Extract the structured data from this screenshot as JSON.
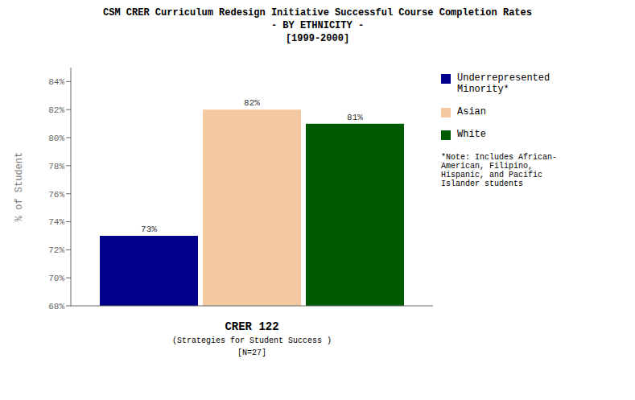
{
  "chart_data": {
    "type": "bar",
    "title": "CSM CRER Curriculum Redesign Initiative Successful Course Completion Rates\n- BY ETHNICITY -\n[1999-2000]",
    "x_label": "CRER 122\n(Strategies for Student Success )\n[N=27]",
    "y_label": "% of Student",
    "categories": [
      null
    ],
    "series": [
      {
        "name": "Underrepresented\nMinority*",
        "color": "#00008B",
        "values": [
          73
        ],
        "value_labels": [
          "73%"
        ]
      },
      {
        "name": "Asian",
        "color": "#F4C9A0",
        "values": [
          82
        ],
        "value_labels": [
          "82%"
        ]
      },
      {
        "name": "White",
        "color": "#005B00",
        "values": [
          81
        ],
        "value_labels": [
          "81%"
        ]
      }
    ],
    "ylim": [
      68,
      85
    ],
    "yticks": [
      {
        "value": 68,
        "label": "68%"
      },
      {
        "value": 70,
        "label": "70%"
      },
      {
        "value": 72,
        "label": "72%"
      },
      {
        "value": 74,
        "label": "74%"
      },
      {
        "value": 76,
        "label": "76%"
      },
      {
        "value": 78,
        "label": "78%"
      },
      {
        "value": 80,
        "label": "80%"
      },
      {
        "value": 82,
        "label": "82%"
      },
      {
        "value": 84,
        "label": "84%"
      }
    ],
    "data_labels": true,
    "legend": "right",
    "grid": false,
    "annotations": [
      "*Note: Includes African-\nAmerican, Filipino,\nHispanic, and Pacific\nIslander students"
    ]
  }
}
